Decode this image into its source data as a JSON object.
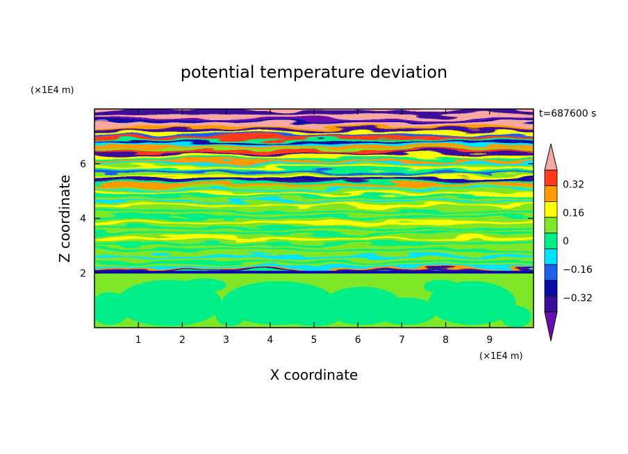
{
  "chart_data": {
    "type": "heatmap",
    "title": "potential temperature deviation",
    "xlabel": "X coordinate",
    "ylabel": "Z coordinate",
    "x_unit": "(×1E4 m)",
    "y_unit": "(×1E4 m)",
    "time_label": "t=687600 s",
    "xlim": [
      0,
      10
    ],
    "ylim": [
      0,
      8
    ],
    "x_ticks": [
      1,
      2,
      3,
      4,
      5,
      6,
      7,
      8,
      9
    ],
    "y_ticks": [
      2,
      4,
      6
    ],
    "x_tick_labels": [
      "1",
      "2",
      "3",
      "4",
      "5",
      "6",
      "7",
      "8",
      "9"
    ],
    "y_tick_labels": [
      "2",
      "4",
      "6"
    ],
    "colorbar": {
      "levels": [
        -0.4,
        -0.32,
        -0.24,
        -0.16,
        -0.08,
        0,
        0.08,
        0.16,
        0.24,
        0.32,
        0.4
      ],
      "labeled": [
        "0.32",
        "0.16",
        "0",
        "−0.16",
        "−0.32"
      ],
      "colors": [
        "#6a0dad",
        "#3a0d9a",
        "#0a0aa8",
        "#1f5ff0",
        "#00e5ff",
        "#00ee88",
        "#7fe628",
        "#ffff00",
        "#ff9a00",
        "#ff3a1a",
        "#f7a8a0"
      ],
      "extend": "both"
    },
    "layers": [
      {
        "z_range": [
          0,
          2.0
        ],
        "pattern": "convective cells, values ≈ 0 to 0.08"
      },
      {
        "z_range": [
          2.0,
          2.1
        ],
        "pattern": "thin negative layer ≈ −0.32"
      },
      {
        "z_range": [
          2.1,
          5.0
        ],
        "pattern": "stratified wavy bands, values ≈ −0.16 to 0.24"
      },
      {
        "z_range": [
          5.0,
          7.8
        ],
        "pattern": "strong wave bands, values ≈ −0.4 to 0.4"
      },
      {
        "z_range": [
          7.8,
          8.0
        ],
        "pattern": "mixed extremes ≈ ±0.4"
      }
    ]
  }
}
